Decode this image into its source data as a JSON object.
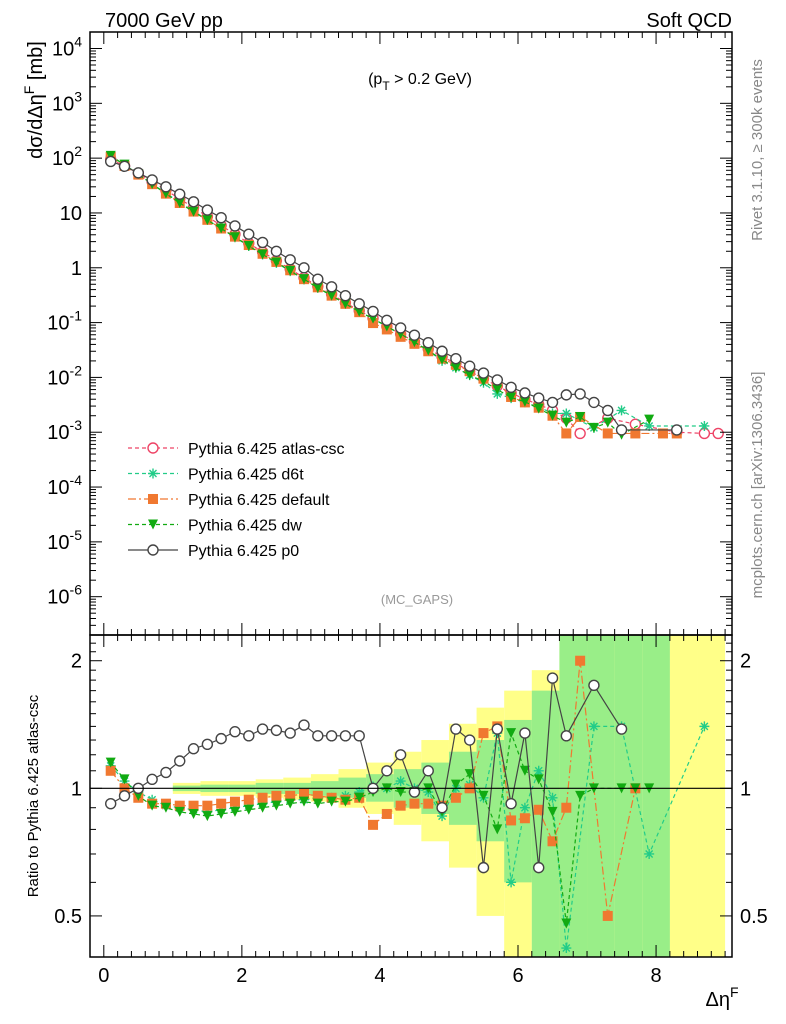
{
  "header": {
    "left": "7000 GeV pp",
    "right": "Soft QCD"
  },
  "side": {
    "rivet": "Rivet 3.1.10, ≥ 300k events",
    "mcplots": "mcplots.cern.ch [arXiv:1306.3436]"
  },
  "chart_data": [
    {
      "type": "line",
      "panel": "main",
      "ylabel": "dσ/dΔηF [mb]",
      "annotation": "(pT > 0.2 GeV)",
      "analysis": "(MC_GAPS)",
      "yscale": "log",
      "ylim": [
        2e-07,
        20000
      ],
      "xlim": [
        -0.2,
        9.1
      ],
      "yticks": [
        "10^4",
        "10^3",
        "10^2",
        "10",
        "1",
        "10^-1",
        "10^-2",
        "10^-3",
        "10^-4",
        "10^-5",
        "10^-6"
      ],
      "legend_position": "lower-left",
      "series": [
        {
          "name": "Pythia 6.425 atlas-csc",
          "color": "#ee4466",
          "marker": "open-circle",
          "x": [
            0.1,
            0.3,
            0.5,
            0.7,
            0.9,
            1.1,
            1.3,
            1.5,
            1.7,
            1.9,
            2.1,
            2.3,
            2.5,
            2.7,
            2.9,
            3.1,
            3.3,
            3.5,
            3.7,
            3.9,
            4.1,
            4.3,
            4.5,
            4.7,
            4.9,
            5.1,
            5.3,
            5.5,
            5.7,
            5.9,
            6.1,
            6.3,
            6.5,
            6.7,
            6.9,
            7.3,
            7.7,
            8.3,
            8.7,
            8.9
          ],
          "y": [
            95,
            72,
            53,
            37,
            26,
            18,
            12.5,
            8.6,
            5.9,
            4.1,
            2.8,
            1.95,
            1.35,
            0.95,
            0.66,
            0.46,
            0.33,
            0.23,
            0.165,
            0.12,
            0.085,
            0.062,
            0.045,
            0.033,
            0.024,
            0.018,
            0.013,
            0.0095,
            0.007,
            0.0052,
            0.004,
            0.0032,
            0.0025,
            0.0018,
            0.00095,
            0.0018,
            0.0014,
            0.001,
            0.00095,
            0.00095
          ]
        },
        {
          "name": "Pythia 6.425 d6t",
          "color": "#22cc88",
          "marker": "star",
          "x": [
            0.1,
            0.3,
            0.5,
            0.7,
            0.9,
            1.1,
            1.3,
            1.5,
            1.7,
            1.9,
            2.1,
            2.3,
            2.5,
            2.7,
            2.9,
            3.1,
            3.3,
            3.5,
            3.7,
            3.9,
            4.1,
            4.3,
            4.5,
            4.7,
            4.9,
            5.1,
            5.3,
            5.5,
            5.7,
            5.9,
            6.1,
            6.3,
            6.5,
            6.7,
            7.1,
            7.5,
            7.9,
            8.7
          ],
          "y": [
            108,
            75,
            51,
            34,
            23,
            15.6,
            10.8,
            7.5,
            5.2,
            3.6,
            2.5,
            1.75,
            1.23,
            0.87,
            0.61,
            0.43,
            0.31,
            0.22,
            0.16,
            0.118,
            0.085,
            0.061,
            0.044,
            0.031,
            0.02,
            0.015,
            0.011,
            0.008,
            0.005,
            0.0042,
            0.0035,
            0.0029,
            0.0022,
            0.0022,
            0.0012,
            0.0025,
            0.0013,
            0.0013
          ]
        },
        {
          "name": "Pythia 6.425 default",
          "color": "#f07830",
          "marker": "filled-square",
          "x": [
            0.1,
            0.3,
            0.5,
            0.7,
            0.9,
            1.1,
            1.3,
            1.5,
            1.7,
            1.9,
            2.1,
            2.3,
            2.5,
            2.7,
            2.9,
            3.1,
            3.3,
            3.5,
            3.7,
            3.9,
            4.1,
            4.3,
            4.5,
            4.7,
            4.9,
            5.1,
            5.3,
            5.5,
            5.7,
            5.9,
            6.1,
            6.3,
            6.5,
            6.7,
            6.9,
            7.3,
            7.7,
            8.1,
            8.3
          ],
          "y": [
            105,
            72,
            50,
            33.5,
            22.5,
            15.2,
            10.6,
            7.5,
            5.2,
            3.7,
            2.6,
            1.8,
            1.28,
            0.9,
            0.62,
            0.44,
            0.31,
            0.22,
            0.155,
            0.098,
            0.075,
            0.055,
            0.041,
            0.03,
            0.022,
            0.017,
            0.013,
            0.0095,
            0.008,
            0.0044,
            0.0035,
            0.0028,
            0.002,
            0.00095,
            0.0019,
            0.00095,
            0.00095,
            0.00095,
            0.00095
          ]
        },
        {
          "name": "Pythia 6.425 dw",
          "color": "#11aa11",
          "marker": "filled-triangle-down",
          "x": [
            0.1,
            0.3,
            0.5,
            0.7,
            0.9,
            1.1,
            1.3,
            1.5,
            1.7,
            1.9,
            2.1,
            2.3,
            2.5,
            2.7,
            2.9,
            3.1,
            3.3,
            3.5,
            3.7,
            3.9,
            4.1,
            4.3,
            4.5,
            4.7,
            4.9,
            5.1,
            5.3,
            5.5,
            5.7,
            5.9,
            6.1,
            6.3,
            6.5,
            6.7,
            6.9,
            7.1,
            7.3,
            7.5,
            7.9
          ],
          "y": [
            110,
            76,
            51,
            33.5,
            22.5,
            15.2,
            10.5,
            7.4,
            5.2,
            3.6,
            2.5,
            1.75,
            1.25,
            0.88,
            0.62,
            0.43,
            0.31,
            0.22,
            0.158,
            0.118,
            0.085,
            0.062,
            0.044,
            0.031,
            0.021,
            0.015,
            0.011,
            0.0085,
            0.006,
            0.0043,
            0.0036,
            0.0027,
            0.002,
            0.0015,
            0.0019,
            0.0012,
            0.0015,
            0.0009,
            0.0017
          ]
        },
        {
          "name": "Pythia 6.425 p0",
          "color": "#444444",
          "marker": "open-circle",
          "x": [
            0.1,
            0.3,
            0.5,
            0.7,
            0.9,
            1.1,
            1.3,
            1.5,
            1.7,
            1.9,
            2.1,
            2.3,
            2.5,
            2.7,
            2.9,
            3.1,
            3.3,
            3.5,
            3.7,
            3.9,
            4.1,
            4.3,
            4.5,
            4.7,
            4.9,
            5.1,
            5.3,
            5.5,
            5.7,
            5.9,
            6.1,
            6.3,
            6.5,
            6.7,
            6.9,
            7.1,
            7.3,
            7.5,
            8.3
          ],
          "y": [
            87,
            71,
            54,
            40,
            30,
            22,
            16,
            11.3,
            8.2,
            5.8,
            4.1,
            2.9,
            2.0,
            1.4,
            1.0,
            0.62,
            0.45,
            0.31,
            0.22,
            0.16,
            0.11,
            0.08,
            0.059,
            0.043,
            0.03,
            0.022,
            0.016,
            0.012,
            0.009,
            0.0066,
            0.0052,
            0.0042,
            0.0035,
            0.0048,
            0.005,
            0.0035,
            0.0025,
            0.0011,
            0.0011
          ]
        }
      ]
    },
    {
      "type": "line",
      "panel": "ratio",
      "ylabel": "Ratio to Pythia 6.425 atlas-csc",
      "xlabel": "ΔηF",
      "yscale": "log",
      "ylim": [
        0.4,
        2.3
      ],
      "xlim": [
        -0.2,
        9.1
      ],
      "yticks": [
        0.5,
        1,
        2
      ],
      "xticks": [
        0,
        2,
        4,
        6,
        8
      ],
      "reference_line": 1,
      "bands": [
        {
          "color": "#ffff88",
          "x": [
            1.2,
            1.6,
            2.0,
            2.4,
            2.8,
            3.2,
            3.6,
            4.0,
            4.4,
            4.8,
            5.2,
            5.6,
            6.0,
            6.4,
            6.8,
            7.2,
            7.6,
            8.0,
            8.4,
            8.8
          ],
          "lo": [
            0.97,
            0.96,
            0.96,
            0.95,
            0.94,
            0.93,
            0.9,
            0.87,
            0.82,
            0.75,
            0.65,
            0.5,
            0.4,
            0.4,
            0.4,
            0.4,
            0.4,
            0.4,
            0.4,
            0.4
          ],
          "hi": [
            1.03,
            1.04,
            1.04,
            1.05,
            1.06,
            1.08,
            1.11,
            1.15,
            1.22,
            1.3,
            1.42,
            1.55,
            1.7,
            1.9,
            2.3,
            2.3,
            2.3,
            2.3,
            2.3,
            2.3
          ]
        },
        {
          "color": "#99ee88",
          "x": [
            1.2,
            1.6,
            2.0,
            2.4,
            2.8,
            3.2,
            3.6,
            4.0,
            4.4,
            4.8,
            5.2,
            5.6,
            6.0,
            6.4,
            6.8,
            7.2,
            7.6,
            8.0
          ],
          "lo": [
            0.985,
            0.98,
            0.98,
            0.97,
            0.97,
            0.96,
            0.95,
            0.93,
            0.9,
            0.87,
            0.82,
            0.75,
            0.6,
            0.4,
            0.4,
            0.4,
            0.4,
            0.4
          ],
          "hi": [
            1.015,
            1.02,
            1.02,
            1.03,
            1.03,
            1.04,
            1.06,
            1.08,
            1.11,
            1.15,
            1.22,
            1.3,
            1.45,
            1.7,
            2.3,
            2.3,
            2.3,
            2.3
          ]
        }
      ],
      "series": [
        {
          "name": "Pythia 6.425 d6t",
          "color": "#22cc88",
          "marker": "star",
          "x": [
            0.1,
            0.3,
            0.5,
            0.7,
            0.9,
            1.1,
            1.3,
            1.5,
            1.7,
            1.9,
            2.1,
            2.3,
            2.5,
            2.7,
            2.9,
            3.1,
            3.3,
            3.5,
            3.7,
            3.9,
            4.1,
            4.3,
            4.5,
            4.7,
            4.9,
            5.1,
            5.3,
            5.5,
            5.7,
            5.9,
            6.1,
            6.3,
            6.5,
            6.7,
            7.1,
            7.5,
            7.9,
            8.7
          ],
          "y": [
            1.13,
            1.04,
            0.98,
            0.94,
            0.91,
            0.9,
            0.89,
            0.88,
            0.89,
            0.9,
            0.91,
            0.92,
            0.93,
            0.94,
            0.94,
            0.95,
            0.95,
            0.96,
            0.98,
            1.01,
            1.0,
            1.04,
            1.0,
            0.98,
            0.86,
            1.0,
            1.02,
            0.95,
            1.35,
            0.6,
            0.9,
            1.1,
            0.95,
            0.42,
            1.4,
            1.4,
            0.7,
            1.4
          ]
        },
        {
          "name": "Pythia 6.425 default",
          "color": "#f07830",
          "marker": "filled-square",
          "x": [
            0.1,
            0.3,
            0.5,
            0.7,
            0.9,
            1.1,
            1.3,
            1.5,
            1.7,
            1.9,
            2.1,
            2.3,
            2.5,
            2.7,
            2.9,
            3.1,
            3.3,
            3.5,
            3.7,
            3.9,
            4.1,
            4.3,
            4.5,
            4.7,
            4.9,
            5.1,
            5.3,
            5.5,
            5.7,
            5.9,
            6.1,
            6.3,
            6.5,
            6.7,
            6.9,
            7.3,
            7.7
          ],
          "y": [
            1.1,
            1.0,
            0.95,
            0.92,
            0.92,
            0.91,
            0.91,
            0.91,
            0.92,
            0.93,
            0.94,
            0.95,
            0.96,
            0.96,
            0.97,
            0.96,
            0.95,
            0.94,
            0.95,
            0.82,
            0.87,
            0.91,
            0.92,
            0.92,
            0.91,
            0.95,
            1.0,
            1.35,
            1.4,
            0.84,
            0.85,
            0.89,
            0.75,
            0.9,
            2.0,
            0.5,
            1.0
          ]
        },
        {
          "name": "Pythia 6.425 dw",
          "color": "#11aa11",
          "marker": "filled-triangle-down",
          "x": [
            0.1,
            0.3,
            0.5,
            0.7,
            0.9,
            1.1,
            1.3,
            1.5,
            1.7,
            1.9,
            2.1,
            2.3,
            2.5,
            2.7,
            2.9,
            3.1,
            3.3,
            3.5,
            3.7,
            3.9,
            4.1,
            4.3,
            4.5,
            4.7,
            4.9,
            5.1,
            5.3,
            5.5,
            5.7,
            5.9,
            6.1,
            6.3,
            6.5,
            6.7,
            6.9,
            7.1,
            7.5,
            7.7,
            7.9
          ],
          "y": [
            1.15,
            1.05,
            0.96,
            0.91,
            0.9,
            0.88,
            0.87,
            0.86,
            0.87,
            0.88,
            0.89,
            0.9,
            0.91,
            0.92,
            0.93,
            0.92,
            0.93,
            0.93,
            0.95,
            0.98,
            1.0,
            0.98,
            0.98,
            1.0,
            0.88,
            1.02,
            1.08,
            0.96,
            0.8,
            1.35,
            1.1,
            1.05,
            0.88,
            0.48,
            0.96,
            1.0,
            1.0,
            1.0,
            1.0
          ]
        },
        {
          "name": "Pythia 6.425 p0",
          "color": "#444444",
          "marker": "open-circle",
          "x": [
            0.1,
            0.3,
            0.5,
            0.7,
            0.9,
            1.1,
            1.3,
            1.5,
            1.7,
            1.9,
            2.1,
            2.3,
            2.5,
            2.7,
            2.9,
            3.1,
            3.3,
            3.5,
            3.7,
            3.9,
            4.1,
            4.3,
            4.5,
            4.7,
            4.9,
            5.1,
            5.3,
            5.5,
            5.7,
            5.9,
            6.1,
            6.3,
            6.5,
            6.7,
            7.1,
            7.5
          ],
          "y": [
            0.92,
            0.96,
            1.0,
            1.05,
            1.09,
            1.16,
            1.24,
            1.27,
            1.31,
            1.36,
            1.33,
            1.38,
            1.37,
            1.35,
            1.41,
            1.33,
            1.33,
            1.33,
            1.33,
            1.0,
            1.1,
            1.2,
            0.98,
            1.1,
            0.9,
            1.38,
            1.3,
            0.65,
            1.38,
            0.92,
            1.35,
            0.65,
            1.82,
            1.33,
            1.75,
            1.38
          ]
        }
      ]
    }
  ]
}
